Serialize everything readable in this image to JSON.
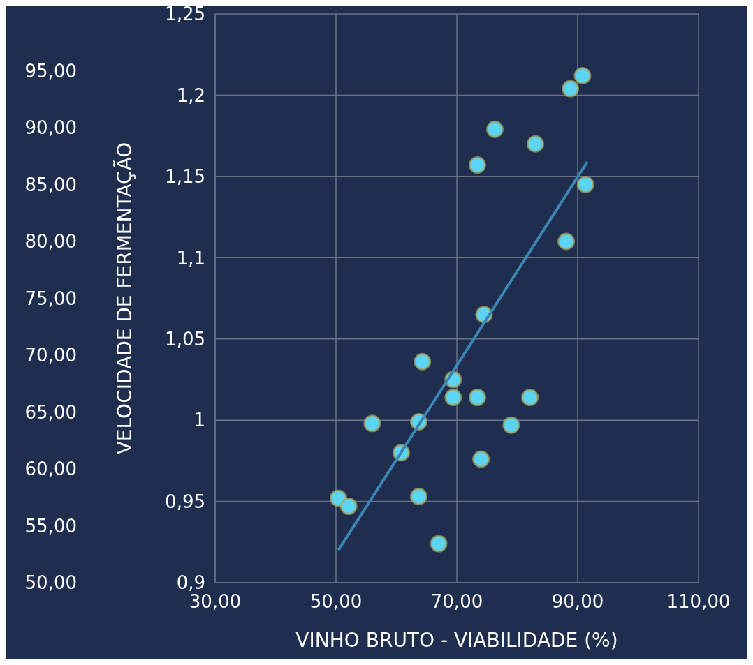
{
  "chart_data": {
    "type": "scatter",
    "xlabel": "VINHO BRUTO  - VIABILIDADE (%)",
    "ylabel": "VELOCIDADE DE FERMENTAÇÃO",
    "xlim": [
      30,
      110
    ],
    "xticks": [
      {
        "value": 30,
        "label": "30,00"
      },
      {
        "value": 50,
        "label": "50,00"
      },
      {
        "value": 70,
        "label": "70,00"
      },
      {
        "value": 90,
        "label": "90,00"
      },
      {
        "value": 110,
        "label": "110,00"
      }
    ],
    "ylim": [
      0.9,
      1.25
    ],
    "yticks": [
      {
        "value": 0.9,
        "label": "0,9"
      },
      {
        "value": 0.95,
        "label": "0,95"
      },
      {
        "value": 1,
        "label": "1"
      },
      {
        "value": 1.05,
        "label": "1,05"
      },
      {
        "value": 1.1,
        "label": "1,1"
      },
      {
        "value": 1.15,
        "label": "1,15"
      },
      {
        "value": 1.2,
        "label": "1,2"
      },
      {
        "value": 1.25,
        "label": "1,25"
      }
    ],
    "y2lim": [
      50,
      100
    ],
    "y2ticks": [
      {
        "value": 50,
        "label": "50,00"
      },
      {
        "value": 55,
        "label": "55,00"
      },
      {
        "value": 60,
        "label": "60,00"
      },
      {
        "value": 65,
        "label": "65,00"
      },
      {
        "value": 70,
        "label": "70,00"
      },
      {
        "value": 75,
        "label": "75,00"
      },
      {
        "value": 80,
        "label": "80,00"
      },
      {
        "value": 85,
        "label": "85,00"
      },
      {
        "value": 90,
        "label": "90,00"
      },
      {
        "value": 95,
        "label": "95,00"
      }
    ],
    "grid": true,
    "marker": "circle",
    "series": [
      {
        "type": "scatter",
        "color": "#5bd5f5",
        "x": [
          50.4,
          52.1,
          56.0,
          60.8,
          63.7,
          63.7,
          64.3,
          67.0,
          69.4,
          69.4,
          73.4,
          73.4,
          74.0,
          74.5,
          76.3,
          79.0,
          82.1,
          83.0,
          88.1,
          88.8,
          90.8,
          91.3
        ],
        "values": [
          0.952,
          0.947,
          0.998,
          0.98,
          0.999,
          0.953,
          1.036,
          0.924,
          1.025,
          1.014,
          1.014,
          1.157,
          0.976,
          1.065,
          1.179,
          0.997,
          1.014,
          1.17,
          1.11,
          1.204,
          1.212,
          1.145
        ]
      },
      {
        "type": "line",
        "marker": "none",
        "color": "#3a86b0",
        "x": [
          50.4,
          91.6
        ],
        "values": [
          0.92,
          1.159
        ]
      }
    ]
  }
}
